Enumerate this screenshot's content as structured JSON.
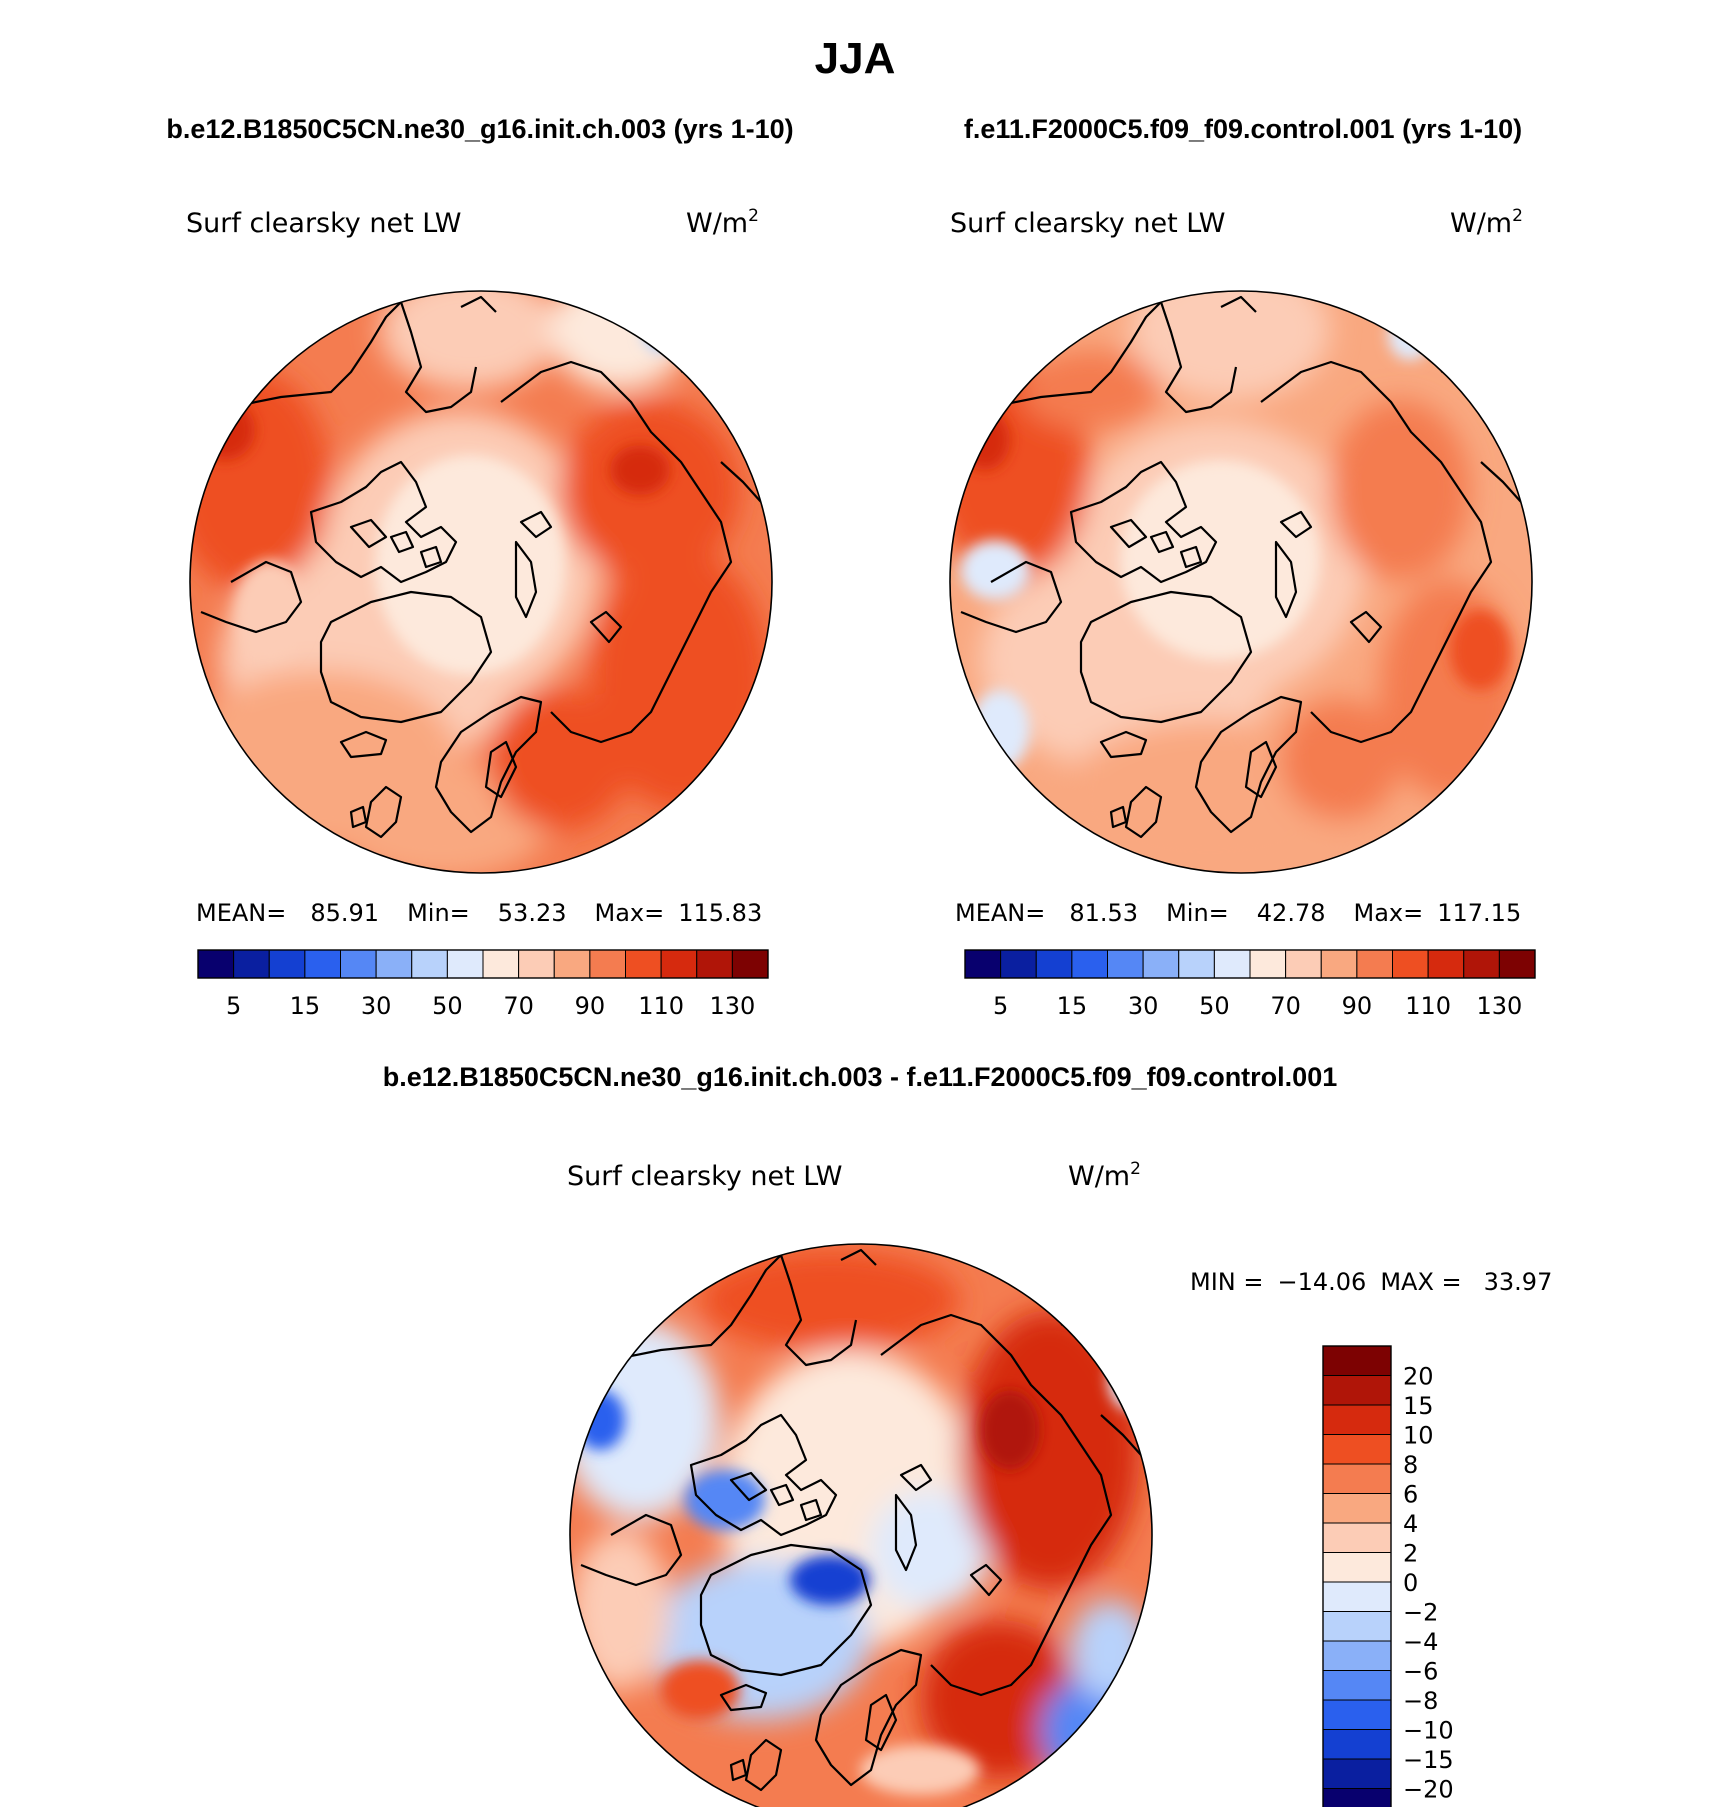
{
  "page": {
    "season_title": "JJA",
    "case_a_title": "b.e12.B1850C5CN.ne30_g16.init.ch.003 (yrs 1-10)",
    "case_b_title": "f.e11.F2000C5.f09_f09.control.001 (yrs 1-10)",
    "diff_title": "b.e12.B1850C5CN.ne30_g16.init.ch.003 - f.e11.F2000C5.f09_f09.control.001"
  },
  "panels": {
    "a": {
      "variable": "Surf clearsky net LW",
      "units_base": "W/m",
      "units_exp": "2",
      "mean_label": "MEAN=",
      "mean_value": "85.91",
      "min_label": "Min=",
      "min_value": "53.23",
      "max_label": "Max=",
      "max_value": "115.83"
    },
    "b": {
      "variable": "Surf clearsky net LW",
      "units_base": "W/m",
      "units_exp": "2",
      "mean_label": "MEAN=",
      "mean_value": "81.53",
      "min_label": "Min=",
      "min_value": "42.78",
      "max_label": "Max=",
      "max_value": "117.15"
    },
    "diff": {
      "variable": "Surf clearsky net LW",
      "units_base": "W/m",
      "units_exp": "2",
      "min_label": "MIN =",
      "min_value": "−14.06",
      "max_label": "MAX =",
      "max_value": "33.97"
    }
  },
  "colors": {
    "main_scale": [
      "#08006e",
      "#0a1fa0",
      "#1440d2",
      "#2a60ee",
      "#5587f5",
      "#8ab0f8",
      "#b8d2fb",
      "#dfeafc",
      "#fde9dc",
      "#fcccb6",
      "#f9a880",
      "#f47c50",
      "#ee4f22",
      "#d62a0e",
      "#b01508",
      "#7d0202"
    ],
    "diff_scale": [
      "#08006e",
      "#0a1fa0",
      "#1440d2",
      "#2a60ee",
      "#5587f5",
      "#8ab0f8",
      "#b8d2fb",
      "#dfeafc",
      "#fde9dc",
      "#fcccb6",
      "#f9a880",
      "#f47c50",
      "#ee4f22",
      "#d62a0e",
      "#b01508",
      "#7d0202"
    ],
    "land_outline": "#000000"
  },
  "chart_data": [
    {
      "type": "heatmap",
      "projection": "north polar stereographic",
      "title": "Surf clearsky net LW",
      "units": "W/m2",
      "case": "b.e12.B1850C5CN.ne30_g16.init.ch.003 (yrs 1-10)",
      "stats": {
        "mean": 85.91,
        "min": 53.23,
        "max": 115.83
      },
      "colorbar_labels": [
        "5",
        "15",
        "30",
        "50",
        "70",
        "90",
        "110",
        "130"
      ],
      "colorbar_levels": [
        0,
        5,
        10,
        15,
        20,
        30,
        40,
        50,
        60,
        70,
        80,
        90,
        100,
        110,
        120,
        130
      ],
      "colorbar_orientation": "horizontal"
    },
    {
      "type": "heatmap",
      "projection": "north polar stereographic",
      "title": "Surf clearsky net LW",
      "units": "W/m2",
      "case": "f.e11.F2000C5.f09_f09.control.001 (yrs 1-10)",
      "stats": {
        "mean": 81.53,
        "min": 42.78,
        "max": 117.15
      },
      "colorbar_labels": [
        "5",
        "15",
        "30",
        "50",
        "70",
        "90",
        "110",
        "130"
      ],
      "colorbar_levels": [
        0,
        5,
        10,
        15,
        20,
        30,
        40,
        50,
        60,
        70,
        80,
        90,
        100,
        110,
        120,
        130
      ],
      "colorbar_orientation": "horizontal"
    },
    {
      "type": "heatmap",
      "projection": "north polar stereographic",
      "title": "Surf clearsky net LW",
      "units": "W/m2",
      "case": "b.e12.B1850C5CN.ne30_g16.init.ch.003 - f.e11.F2000C5.f09_f09.control.001",
      "stats": {
        "min": -14.06,
        "max": 33.97
      },
      "colorbar_labels": [
        "20",
        "15",
        "10",
        "8",
        "6",
        "4",
        "2",
        "0",
        "−2",
        "−4",
        "−6",
        "−8",
        "−10",
        "−15",
        "−20"
      ],
      "colorbar_levels": [
        20,
        15,
        10,
        8,
        6,
        4,
        2,
        0,
        -2,
        -4,
        -6,
        -8,
        -10,
        -15,
        -20
      ],
      "colorbar_orientation": "vertical"
    }
  ]
}
